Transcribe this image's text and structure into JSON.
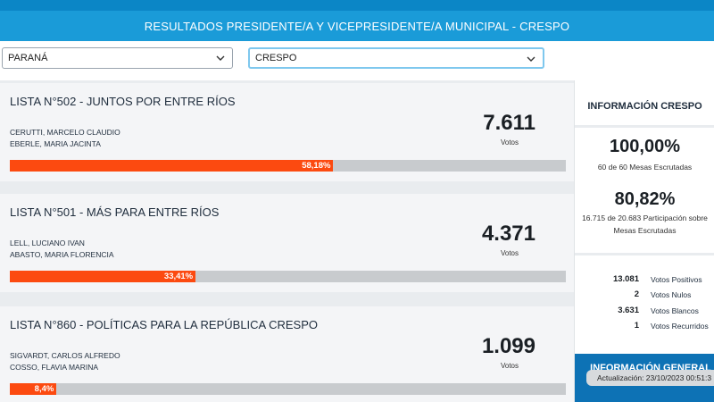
{
  "header": {
    "title": "RESULTADOS PRESIDENTE/A Y VICEPRESIDENTE/A MUNICIPAL - CRESPO"
  },
  "filters": {
    "department": "PARANÁ",
    "locality": "CRESPO"
  },
  "results": [
    {
      "lista": "LISTA N°502 - JUNTOS POR ENTRE RÍOS",
      "candidates": [
        "CERUTTI, MARCELO CLAUDIO",
        "EBERLE, MARIA JACINTA"
      ],
      "votes": "7.611",
      "votes_label": "Votos",
      "percent_label": "58,18%",
      "percent": 58.18
    },
    {
      "lista": "LISTA N°501 - MÁS PARA ENTRE RÍOS",
      "candidates": [
        "LELL, LUCIANO IVAN",
        "ABASTO, MARIA FLORENCIA"
      ],
      "votes": "4.371",
      "votes_label": "Votos",
      "percent_label": "33,41%",
      "percent": 33.41
    },
    {
      "lista": "LISTA N°860 - POLÍTICAS PARA LA REPÚBLICA CRESPO",
      "candidates": [
        "SIGVARDT, CARLOS ALFREDO",
        "COSSO, FLAVIA MARINA"
      ],
      "votes": "1.099",
      "votes_label": "Votos",
      "percent_label": "8,4%",
      "percent": 8.4
    }
  ],
  "sidebar": {
    "title": "INFORMACIÓN CRESPO",
    "mesas_pct": "100,00%",
    "mesas_text": "60 de 60 Mesas Escrutadas",
    "participacion_pct": "80,82%",
    "participacion_text_1": "16.715 de 20.683 Participación sobre",
    "participacion_text_2": "Mesas Escrutadas",
    "stats": [
      {
        "value": "13.081",
        "label": "Votos Positivos"
      },
      {
        "value": "2",
        "label": "Votos Nulos"
      },
      {
        "value": "3.631",
        "label": "Votos Blancos"
      },
      {
        "value": "1",
        "label": "Votos Recurridos"
      }
    ],
    "general_title": "INFORMACIÓN GENERAL"
  },
  "update": {
    "text": "Actualización: 23/10/2023 00:51:3"
  },
  "colors": {
    "header": "#1a9bd8",
    "bar_fill": "#fc4a10",
    "bar_track": "#c8cbce",
    "general_bg": "#0d72b5"
  },
  "icons": {
    "dropdown": "chevron-down-icon"
  }
}
